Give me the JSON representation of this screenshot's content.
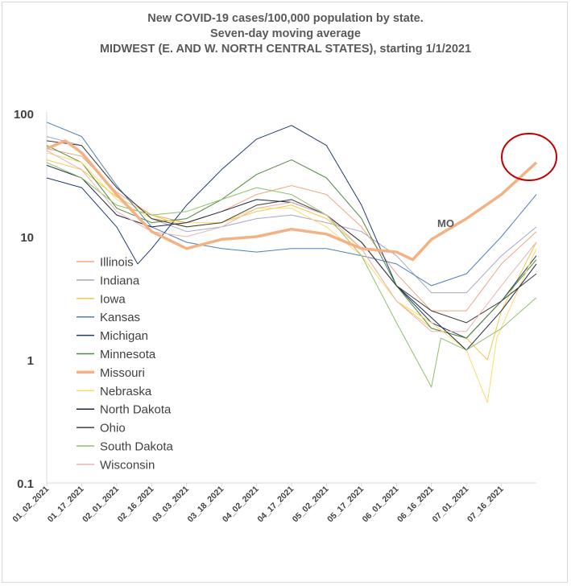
{
  "chart_data": {
    "type": "line",
    "title": [
      "New COVID-19 cases/100,000 population by state.",
      "Seven-day moving average",
      "MIDWEST (E. AND W. NORTH CENTRAL STATES), starting 1/1/2021"
    ],
    "yscale": "log",
    "ylim": [
      0.1,
      100
    ],
    "yticks": [
      {
        "v": 100,
        "label": "100"
      },
      {
        "v": 10,
        "label": "10"
      },
      {
        "v": 1,
        "label": "1"
      },
      {
        "v": 0.1,
        "label": "0.1"
      }
    ],
    "xlabels": [
      "01_02_2021",
      "01_17_2021",
      "02_01_2021",
      "02_16_2021",
      "03_03_2021",
      "03_18_2021",
      "04_02_2021",
      "04_17_2021",
      "05_02_2021",
      "05_17_2021",
      "06_01_2021",
      "06_16_2021",
      "07_01_2021",
      "07_16_2021"
    ],
    "x_start": "01_02_2021",
    "x_end": "07_31_2021",
    "annotation": "MO",
    "grid": false,
    "legend_position": "left-center",
    "series": [
      {
        "name": "Illinois",
        "color": "#f4a582",
        "width": 1,
        "points": [
          [
            "01_02_2021",
            52
          ],
          [
            "01_17_2021",
            45
          ],
          [
            "02_01_2021",
            23
          ],
          [
            "02_16_2021",
            15
          ],
          [
            "03_03_2021",
            13
          ],
          [
            "03_18_2021",
            16
          ],
          [
            "04_02_2021",
            22
          ],
          [
            "04_17_2021",
            26
          ],
          [
            "05_02_2021",
            22
          ],
          [
            "05_17_2021",
            12
          ],
          [
            "06_01_2021",
            5
          ],
          [
            "06_16_2021",
            2.5
          ],
          [
            "07_01_2021",
            2.5
          ],
          [
            "07_16_2021",
            6
          ],
          [
            "07_31_2021",
            11
          ]
        ]
      },
      {
        "name": "Indiana",
        "color": "#a6a6c8",
        "width": 1,
        "points": [
          [
            "01_02_2021",
            65
          ],
          [
            "01_17_2021",
            55
          ],
          [
            "02_01_2021",
            25
          ],
          [
            "02_16_2021",
            14
          ],
          [
            "03_03_2021",
            11
          ],
          [
            "03_18_2021",
            12
          ],
          [
            "04_02_2021",
            14
          ],
          [
            "04_17_2021",
            15
          ],
          [
            "05_02_2021",
            13
          ],
          [
            "05_17_2021",
            11
          ],
          [
            "06_01_2021",
            7
          ],
          [
            "06_16_2021",
            3.5
          ],
          [
            "07_01_2021",
            3.5
          ],
          [
            "07_16_2021",
            7
          ],
          [
            "07_31_2021",
            12
          ]
        ]
      },
      {
        "name": "Iowa",
        "color": "#f2c94c",
        "width": 1,
        "points": [
          [
            "01_02_2021",
            42
          ],
          [
            "01_17_2021",
            35
          ],
          [
            "02_01_2021",
            21
          ],
          [
            "02_16_2021",
            15
          ],
          [
            "03_03_2021",
            12
          ],
          [
            "03_18_2021",
            13
          ],
          [
            "04_02_2021",
            16
          ],
          [
            "04_17_2021",
            18
          ],
          [
            "05_02_2021",
            14
          ],
          [
            "05_17_2021",
            8
          ],
          [
            "06_01_2021",
            3
          ],
          [
            "06_16_2021",
            1.8
          ],
          [
            "07_01_2021",
            1.5
          ],
          [
            "07_10_2021",
            1.0
          ],
          [
            "07_16_2021",
            2.5
          ],
          [
            "07_31_2021",
            9
          ]
        ]
      },
      {
        "name": "Kansas",
        "color": "#4f7fbf",
        "width": 1,
        "points": [
          [
            "01_02_2021",
            85
          ],
          [
            "01_17_2021",
            65
          ],
          [
            "02_01_2021",
            26
          ],
          [
            "02_16_2021",
            12
          ],
          [
            "03_03_2021",
            9
          ],
          [
            "03_18_2021",
            8
          ],
          [
            "04_02_2021",
            7.5
          ],
          [
            "04_17_2021",
            8
          ],
          [
            "05_02_2021",
            8
          ],
          [
            "05_17_2021",
            7
          ],
          [
            "06_01_2021",
            6
          ],
          [
            "06_16_2021",
            4
          ],
          [
            "07_01_2021",
            5
          ],
          [
            "07_16_2021",
            10
          ],
          [
            "07_31_2021",
            22
          ]
        ]
      },
      {
        "name": "Michigan",
        "color": "#1f3b73",
        "width": 1,
        "points": [
          [
            "01_02_2021",
            30
          ],
          [
            "01_17_2021",
            25
          ],
          [
            "02_01_2021",
            12
          ],
          [
            "02_10_2021",
            6
          ],
          [
            "02_16_2021",
            8
          ],
          [
            "03_03_2021",
            18
          ],
          [
            "03_18_2021",
            35
          ],
          [
            "04_02_2021",
            62
          ],
          [
            "04_17_2021",
            80
          ],
          [
            "05_02_2021",
            55
          ],
          [
            "05_17_2021",
            18
          ],
          [
            "06_01_2021",
            4
          ],
          [
            "06_16_2021",
            2
          ],
          [
            "07_01_2021",
            1.5
          ],
          [
            "07_16_2021",
            3
          ],
          [
            "07_31_2021",
            7
          ]
        ]
      },
      {
        "name": "Minnesota",
        "color": "#4e8a3e",
        "width": 1,
        "points": [
          [
            "01_02_2021",
            55
          ],
          [
            "01_17_2021",
            40
          ],
          [
            "02_01_2021",
            17
          ],
          [
            "02_16_2021",
            13
          ],
          [
            "03_03_2021",
            14
          ],
          [
            "03_18_2021",
            20
          ],
          [
            "04_02_2021",
            32
          ],
          [
            "04_17_2021",
            42
          ],
          [
            "05_02_2021",
            30
          ],
          [
            "05_17_2021",
            14
          ],
          [
            "06_01_2021",
            4
          ],
          [
            "06_16_2021",
            1.8
          ],
          [
            "07_01_2021",
            1.5
          ],
          [
            "07_16_2021",
            3
          ],
          [
            "07_31_2021",
            6.5
          ]
        ]
      },
      {
        "name": "Missouri",
        "color": "#f4b183",
        "width": 3.5,
        "points": [
          [
            "01_02_2021",
            52
          ],
          [
            "01_10_2021",
            60
          ],
          [
            "01_17_2021",
            48
          ],
          [
            "02_01_2021",
            22
          ],
          [
            "02_16_2021",
            11
          ],
          [
            "03_03_2021",
            8
          ],
          [
            "03_18_2021",
            9.5
          ],
          [
            "04_02_2021",
            10
          ],
          [
            "04_17_2021",
            11.5
          ],
          [
            "05_02_2021",
            10.5
          ],
          [
            "05_17_2021",
            8
          ],
          [
            "06_01_2021",
            7.5
          ],
          [
            "06_08_2021",
            6.5
          ],
          [
            "06_16_2021",
            9.5
          ],
          [
            "07_01_2021",
            14
          ],
          [
            "07_16_2021",
            22
          ],
          [
            "07_31_2021",
            40
          ]
        ]
      },
      {
        "name": "Nebraska",
        "color": "#ffd966",
        "width": 1,
        "points": [
          [
            "01_02_2021",
            48
          ],
          [
            "01_17_2021",
            40
          ],
          [
            "02_01_2021",
            20
          ],
          [
            "02_16_2021",
            14
          ],
          [
            "03_03_2021",
            13
          ],
          [
            "03_18_2021",
            13
          ],
          [
            "04_02_2021",
            17
          ],
          [
            "04_17_2021",
            17
          ],
          [
            "05_02_2021",
            12
          ],
          [
            "05_17_2021",
            7
          ],
          [
            "06_01_2021",
            3
          ],
          [
            "06_16_2021",
            2
          ],
          [
            "07_01_2021",
            1.2
          ],
          [
            "07_10_2021",
            0.45
          ],
          [
            "07_14_2021",
            1.5
          ],
          [
            "07_31_2021",
            8
          ]
        ]
      },
      {
        "name": "North Dakota",
        "color": "#1a2744",
        "width": 1,
        "points": [
          [
            "01_02_2021",
            38
          ],
          [
            "01_17_2021",
            30
          ],
          [
            "02_01_2021",
            15
          ],
          [
            "02_16_2021",
            12
          ],
          [
            "03_03_2021",
            13
          ],
          [
            "03_18_2021",
            16
          ],
          [
            "04_02_2021",
            20
          ],
          [
            "04_17_2021",
            19
          ],
          [
            "05_02_2021",
            15
          ],
          [
            "05_17_2021",
            9
          ],
          [
            "06_01_2021",
            4
          ],
          [
            "06_16_2021",
            2.2
          ],
          [
            "07_01_2021",
            1.2
          ],
          [
            "07_16_2021",
            2.5
          ],
          [
            "07_31_2021",
            6
          ]
        ]
      },
      {
        "name": "Ohio",
        "color": "#3c3c3c",
        "width": 1,
        "points": [
          [
            "01_02_2021",
            60
          ],
          [
            "01_17_2021",
            55
          ],
          [
            "02_01_2021",
            25
          ],
          [
            "02_16_2021",
            14
          ],
          [
            "03_03_2021",
            12
          ],
          [
            "03_18_2021",
            13
          ],
          [
            "04_02_2021",
            18
          ],
          [
            "04_17_2021",
            20
          ],
          [
            "05_02_2021",
            15
          ],
          [
            "05_17_2021",
            9
          ],
          [
            "06_01_2021",
            4
          ],
          [
            "06_16_2021",
            2.5
          ],
          [
            "07_01_2021",
            2
          ],
          [
            "07_16_2021",
            3
          ],
          [
            "07_31_2021",
            5
          ]
        ]
      },
      {
        "name": "South Dakota",
        "color": "#8fbf6a",
        "width": 1,
        "points": [
          [
            "01_02_2021",
            40
          ],
          [
            "01_17_2021",
            30
          ],
          [
            "02_01_2021",
            18
          ],
          [
            "02_16_2021",
            15
          ],
          [
            "03_03_2021",
            16
          ],
          [
            "03_18_2021",
            20
          ],
          [
            "04_02_2021",
            25
          ],
          [
            "04_17_2021",
            22
          ],
          [
            "05_02_2021",
            15
          ],
          [
            "05_17_2021",
            7
          ],
          [
            "06_01_2021",
            2
          ],
          [
            "06_16_2021",
            0.6
          ],
          [
            "06_20_2021",
            1.5
          ],
          [
            "07_01_2021",
            1.2
          ],
          [
            "07_16_2021",
            1.8
          ],
          [
            "07_31_2021",
            3.2
          ]
        ]
      },
      {
        "name": "Wisconsin",
        "color": "#e8b4b0",
        "width": 1,
        "points": [
          [
            "01_02_2021",
            50
          ],
          [
            "01_17_2021",
            35
          ],
          [
            "02_01_2021",
            16
          ],
          [
            "02_16_2021",
            11
          ],
          [
            "03_03_2021",
            10
          ],
          [
            "03_18_2021",
            12
          ],
          [
            "04_02_2021",
            17
          ],
          [
            "04_17_2021",
            19
          ],
          [
            "05_02_2021",
            15
          ],
          [
            "05_17_2021",
            8
          ],
          [
            "06_01_2021",
            3
          ],
          [
            "06_16_2021",
            1.7
          ],
          [
            "07_01_2021",
            1.7
          ],
          [
            "07_16_2021",
            4
          ],
          [
            "07_31_2021",
            9
          ]
        ]
      }
    ]
  }
}
